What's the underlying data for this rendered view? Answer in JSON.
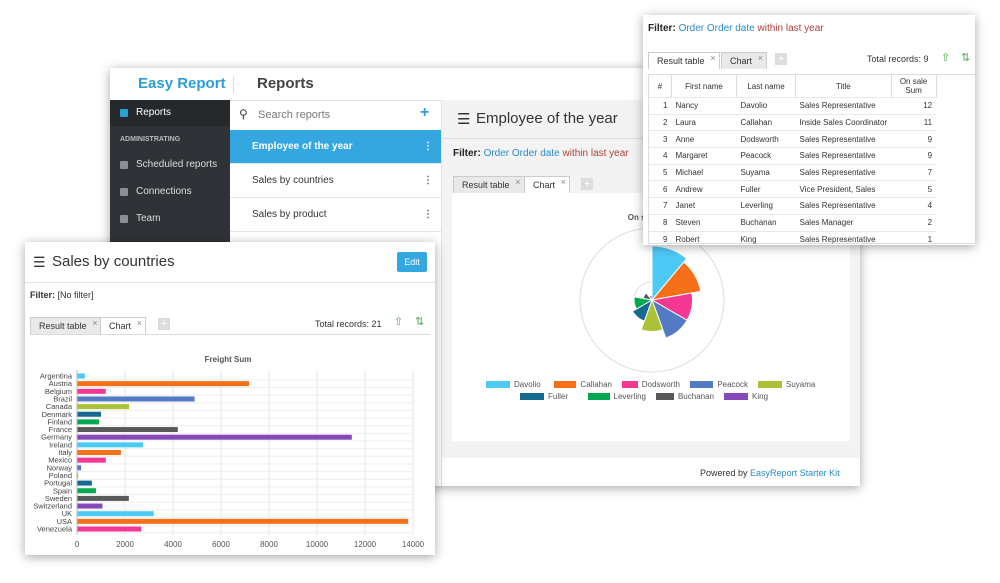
{
  "app": {
    "brand": "Easy Report",
    "section": "Reports",
    "menu": [
      "Reports",
      "ADMINISTRATING",
      "Scheduled reports",
      "Connections",
      "Team"
    ],
    "search_placeholder": "Search reports",
    "reports": [
      "Employee of the year",
      "Sales by countries",
      "Sales by product"
    ],
    "footer": {
      "text": "Powered by",
      "link": "EasyReport Starter Kit"
    }
  },
  "employee_report": {
    "title": "Employee of the year",
    "filter": {
      "label": "Filter:",
      "field": "Order Order date",
      "condition": "within last year"
    },
    "tabs": [
      "Result table",
      "Chart"
    ]
  },
  "result_panel": {
    "filter": {
      "label": "Filter:",
      "field": "Order Order date",
      "condition": "within last year"
    },
    "tabs": [
      "Result table",
      "Chart"
    ],
    "total_records": "Total records: 9",
    "table": {
      "columns": [
        "#",
        "First name",
        "Last name",
        "Title",
        "On sale Sum"
      ],
      "rows": [
        [
          "1",
          "Nancy",
          "Davolio",
          "Sales Representative",
          "12"
        ],
        [
          "2",
          "Laura",
          "Callahan",
          "Inside Sales Coordinator",
          "11"
        ],
        [
          "3",
          "Anne",
          "Dodsworth",
          "Sales Representative",
          "9"
        ],
        [
          "4",
          "Margaret",
          "Peacock",
          "Sales Representative",
          "9"
        ],
        [
          "5",
          "Michael",
          "Suyama",
          "Sales Representative",
          "7"
        ],
        [
          "6",
          "Andrew",
          "Fuller",
          "Vice President, Sales",
          "5"
        ],
        [
          "7",
          "Janet",
          "Leverling",
          "Sales Representative",
          "4"
        ],
        [
          "8",
          "Steven",
          "Buchanan",
          "Sales Manager",
          "2"
        ],
        [
          "9",
          "Robert",
          "King",
          "Sales Representative",
          "1"
        ]
      ]
    }
  },
  "sales_report": {
    "title": "Sales by countries",
    "edit": "Edit",
    "filter": {
      "label": "Filter:",
      "value": "[No filter]"
    },
    "tabs": [
      "Result table",
      "Chart"
    ],
    "total_records": "Total records: 21"
  },
  "chart_data": [
    {
      "type": "bar",
      "orientation": "horizontal",
      "title": "Freight Sum",
      "categories": [
        "Argentina",
        "Austria",
        "Belgium",
        "Brazil",
        "Canada",
        "Denmark",
        "Finland",
        "France",
        "Germany",
        "Ireland",
        "Italy",
        "Mexico",
        "Norway",
        "Poland",
        "Portugal",
        "Spain",
        "Sweden",
        "Switzerland",
        "UK",
        "USA",
        "Venezuela"
      ],
      "values": [
        330,
        7170,
        1200,
        4900,
        2170,
        1000,
        920,
        4200,
        11450,
        2750,
        1830,
        1200,
        170,
        50,
        620,
        790,
        2160,
        1060,
        3200,
        13800,
        2680
      ],
      "colors": [
        "#4dc9f6",
        "#f67019",
        "#f53794",
        "#537bc4",
        "#acc236",
        "#166a8f",
        "#00a950",
        "#58595b",
        "#8549ba",
        "#4dc9f6",
        "#f67019",
        "#f53794",
        "#537bc4",
        "#acc236",
        "#166a8f",
        "#00a950",
        "#58595b",
        "#8549ba",
        "#4dc9f6",
        "#f67019",
        "#f53794"
      ],
      "xlim": [
        0,
        14000
      ],
      "xticks": [
        0,
        2000,
        4000,
        6000,
        8000,
        10000,
        12000,
        14000
      ],
      "grid": true
    },
    {
      "type": "polar",
      "title": "On sale Sum",
      "categories": [
        "Davolio",
        "Callahan",
        "Dodsworth",
        "Peacock",
        "Suyama",
        "Fuller",
        "Leverling",
        "Buchanan",
        "King"
      ],
      "values": [
        12,
        11,
        9,
        9,
        7,
        5,
        4,
        2,
        1
      ],
      "colors": [
        "#4dc9f6",
        "#f67019",
        "#f53794",
        "#537bc4",
        "#acc236",
        "#166a8f",
        "#00a950",
        "#58595b",
        "#8549ba"
      ],
      "rlim": [
        0,
        16
      ],
      "legend": "bottom"
    }
  ]
}
